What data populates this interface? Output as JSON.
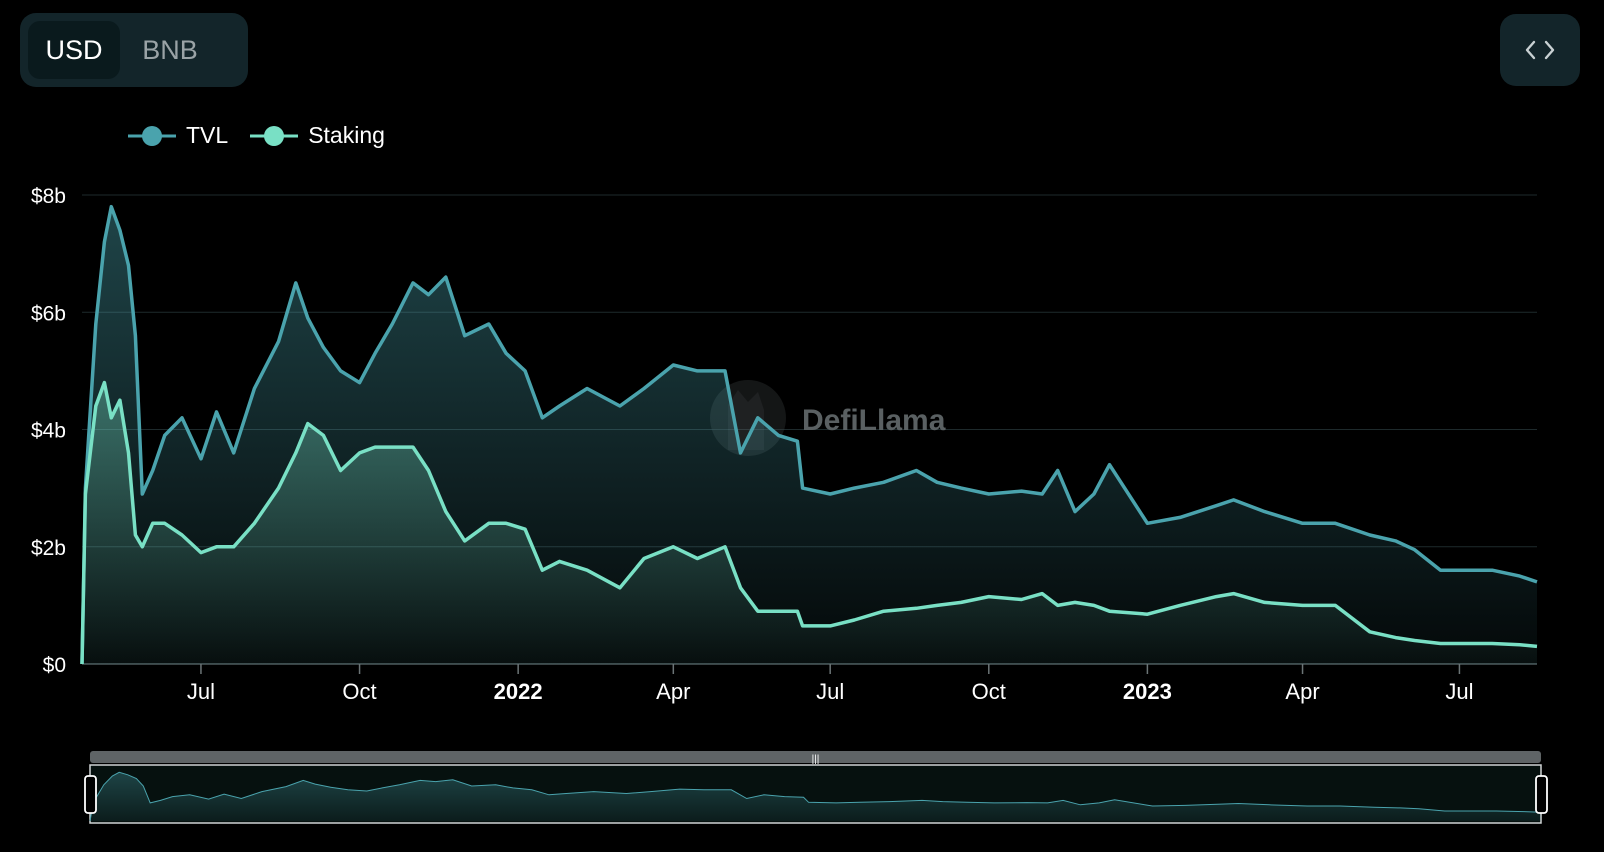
{
  "currency_toggle": {
    "options": [
      "USD",
      "BNB"
    ],
    "selected": "USD"
  },
  "embed_icon": "code-brackets-icon",
  "colors": {
    "tvl": "#4aa3ad",
    "staking": "#79e0c5",
    "background": "#000000",
    "grid": "#1e2a2c",
    "panel": "#13252a"
  },
  "legend": [
    {
      "name": "TVL",
      "color": "#4aa3ad"
    },
    {
      "name": "Staking",
      "color": "#79e0c5"
    }
  ],
  "watermark": "DefiLlama",
  "chart_data": {
    "type": "area",
    "ylim": [
      0,
      8
    ],
    "y_ticks": [
      {
        "value": 0,
        "label": "$0"
      },
      {
        "value": 2,
        "label": "$2b"
      },
      {
        "value": 4,
        "label": "$4b"
      },
      {
        "value": 6,
        "label": "$6b"
      },
      {
        "value": 8,
        "label": "$8b"
      }
    ],
    "x_range": [
      "2021-04-23",
      "2023-08-15"
    ],
    "x_ticks": [
      {
        "date": "2021-07-01",
        "label": "Jul",
        "bold": false
      },
      {
        "date": "2021-10-01",
        "label": "Oct",
        "bold": false
      },
      {
        "date": "2022-01-01",
        "label": "2022",
        "bold": true
      },
      {
        "date": "2022-04-01",
        "label": "Apr",
        "bold": false
      },
      {
        "date": "2022-07-01",
        "label": "Jul",
        "bold": false
      },
      {
        "date": "2022-10-01",
        "label": "Oct",
        "bold": false
      },
      {
        "date": "2023-01-01",
        "label": "2023",
        "bold": true
      },
      {
        "date": "2023-04-01",
        "label": "Apr",
        "bold": false
      },
      {
        "date": "2023-07-01",
        "label": "Jul",
        "bold": false
      }
    ],
    "series": [
      {
        "name": "TVL",
        "x": [
          "2021-04-23",
          "2021-04-25",
          "2021-05-01",
          "2021-05-06",
          "2021-05-10",
          "2021-05-15",
          "2021-05-20",
          "2021-05-24",
          "2021-05-28",
          "2021-06-03",
          "2021-06-10",
          "2021-06-20",
          "2021-07-01",
          "2021-07-10",
          "2021-07-20",
          "2021-08-01",
          "2021-08-15",
          "2021-08-25",
          "2021-09-01",
          "2021-09-10",
          "2021-09-20",
          "2021-10-01",
          "2021-10-10",
          "2021-10-20",
          "2021-11-01",
          "2021-11-10",
          "2021-11-20",
          "2021-12-01",
          "2021-12-15",
          "2021-12-25",
          "2022-01-05",
          "2022-01-15",
          "2022-01-25",
          "2022-02-10",
          "2022-03-01",
          "2022-03-15",
          "2022-04-01",
          "2022-04-15",
          "2022-05-01",
          "2022-05-10",
          "2022-05-20",
          "2022-06-01",
          "2022-06-12",
          "2022-06-15",
          "2022-07-01",
          "2022-07-15",
          "2022-08-01",
          "2022-08-20",
          "2022-09-01",
          "2022-09-15",
          "2022-10-01",
          "2022-10-20",
          "2022-11-01",
          "2022-11-10",
          "2022-11-20",
          "2022-12-01",
          "2022-12-10",
          "2023-01-01",
          "2023-01-20",
          "2023-02-10",
          "2023-02-20",
          "2023-03-10",
          "2023-04-01",
          "2023-04-20",
          "2023-05-10",
          "2023-05-25",
          "2023-06-05",
          "2023-06-20",
          "2023-07-01",
          "2023-07-20",
          "2023-08-05",
          "2023-08-15"
        ],
        "values": [
          0,
          3.0,
          5.8,
          7.2,
          7.8,
          7.4,
          6.8,
          5.6,
          2.9,
          3.3,
          3.9,
          4.2,
          3.5,
          4.3,
          3.6,
          4.7,
          5.5,
          6.5,
          5.9,
          5.4,
          5.0,
          4.8,
          5.3,
          5.8,
          6.5,
          6.3,
          6.6,
          5.6,
          5.8,
          5.3,
          5.0,
          4.2,
          4.4,
          4.7,
          4.4,
          4.7,
          5.1,
          5.0,
          5.0,
          3.6,
          4.2,
          3.9,
          3.8,
          3.0,
          2.9,
          3.0,
          3.1,
          3.3,
          3.1,
          3.0,
          2.9,
          2.95,
          2.9,
          3.3,
          2.6,
          2.9,
          3.4,
          2.4,
          2.5,
          2.7,
          2.8,
          2.6,
          2.4,
          2.4,
          2.2,
          2.1,
          1.95,
          1.6,
          1.6,
          1.6,
          1.5,
          1.4
        ]
      },
      {
        "name": "Staking",
        "x": [
          "2021-04-23",
          "2021-04-25",
          "2021-05-01",
          "2021-05-06",
          "2021-05-10",
          "2021-05-15",
          "2021-05-20",
          "2021-05-24",
          "2021-05-28",
          "2021-06-03",
          "2021-06-10",
          "2021-06-20",
          "2021-07-01",
          "2021-07-10",
          "2021-07-20",
          "2021-08-01",
          "2021-08-15",
          "2021-08-25",
          "2021-09-01",
          "2021-09-10",
          "2021-09-20",
          "2021-10-01",
          "2021-10-10",
          "2021-10-20",
          "2021-11-01",
          "2021-11-10",
          "2021-11-20",
          "2021-12-01",
          "2021-12-15",
          "2021-12-25",
          "2022-01-05",
          "2022-01-15",
          "2022-01-25",
          "2022-02-10",
          "2022-03-01",
          "2022-03-15",
          "2022-04-01",
          "2022-04-15",
          "2022-05-01",
          "2022-05-10",
          "2022-05-20",
          "2022-06-01",
          "2022-06-12",
          "2022-06-15",
          "2022-07-01",
          "2022-07-15",
          "2022-08-01",
          "2022-08-20",
          "2022-09-01",
          "2022-09-15",
          "2022-10-01",
          "2022-10-20",
          "2022-11-01",
          "2022-11-10",
          "2022-11-20",
          "2022-12-01",
          "2022-12-10",
          "2023-01-01",
          "2023-01-20",
          "2023-02-10",
          "2023-02-20",
          "2023-03-10",
          "2023-04-01",
          "2023-04-20",
          "2023-05-10",
          "2023-05-25",
          "2023-06-05",
          "2023-06-20",
          "2023-07-01",
          "2023-07-20",
          "2023-08-05",
          "2023-08-15"
        ],
        "values": [
          0,
          2.9,
          4.4,
          4.8,
          4.2,
          4.5,
          3.6,
          2.2,
          2.0,
          2.4,
          2.4,
          2.2,
          1.9,
          2.0,
          2.0,
          2.4,
          3.0,
          3.6,
          4.1,
          3.9,
          3.3,
          3.6,
          3.7,
          3.7,
          3.7,
          3.3,
          2.6,
          2.1,
          2.4,
          2.4,
          2.3,
          1.6,
          1.75,
          1.6,
          1.3,
          1.8,
          2.0,
          1.8,
          2.0,
          1.3,
          0.9,
          0.9,
          0.9,
          0.65,
          0.65,
          0.75,
          0.9,
          0.95,
          1.0,
          1.05,
          1.15,
          1.1,
          1.2,
          1.0,
          1.05,
          1.0,
          0.9,
          0.85,
          1.0,
          1.15,
          1.2,
          1.05,
          1.0,
          1.0,
          0.55,
          0.45,
          0.4,
          0.35,
          0.35,
          0.35,
          0.33,
          0.3
        ]
      }
    ]
  }
}
